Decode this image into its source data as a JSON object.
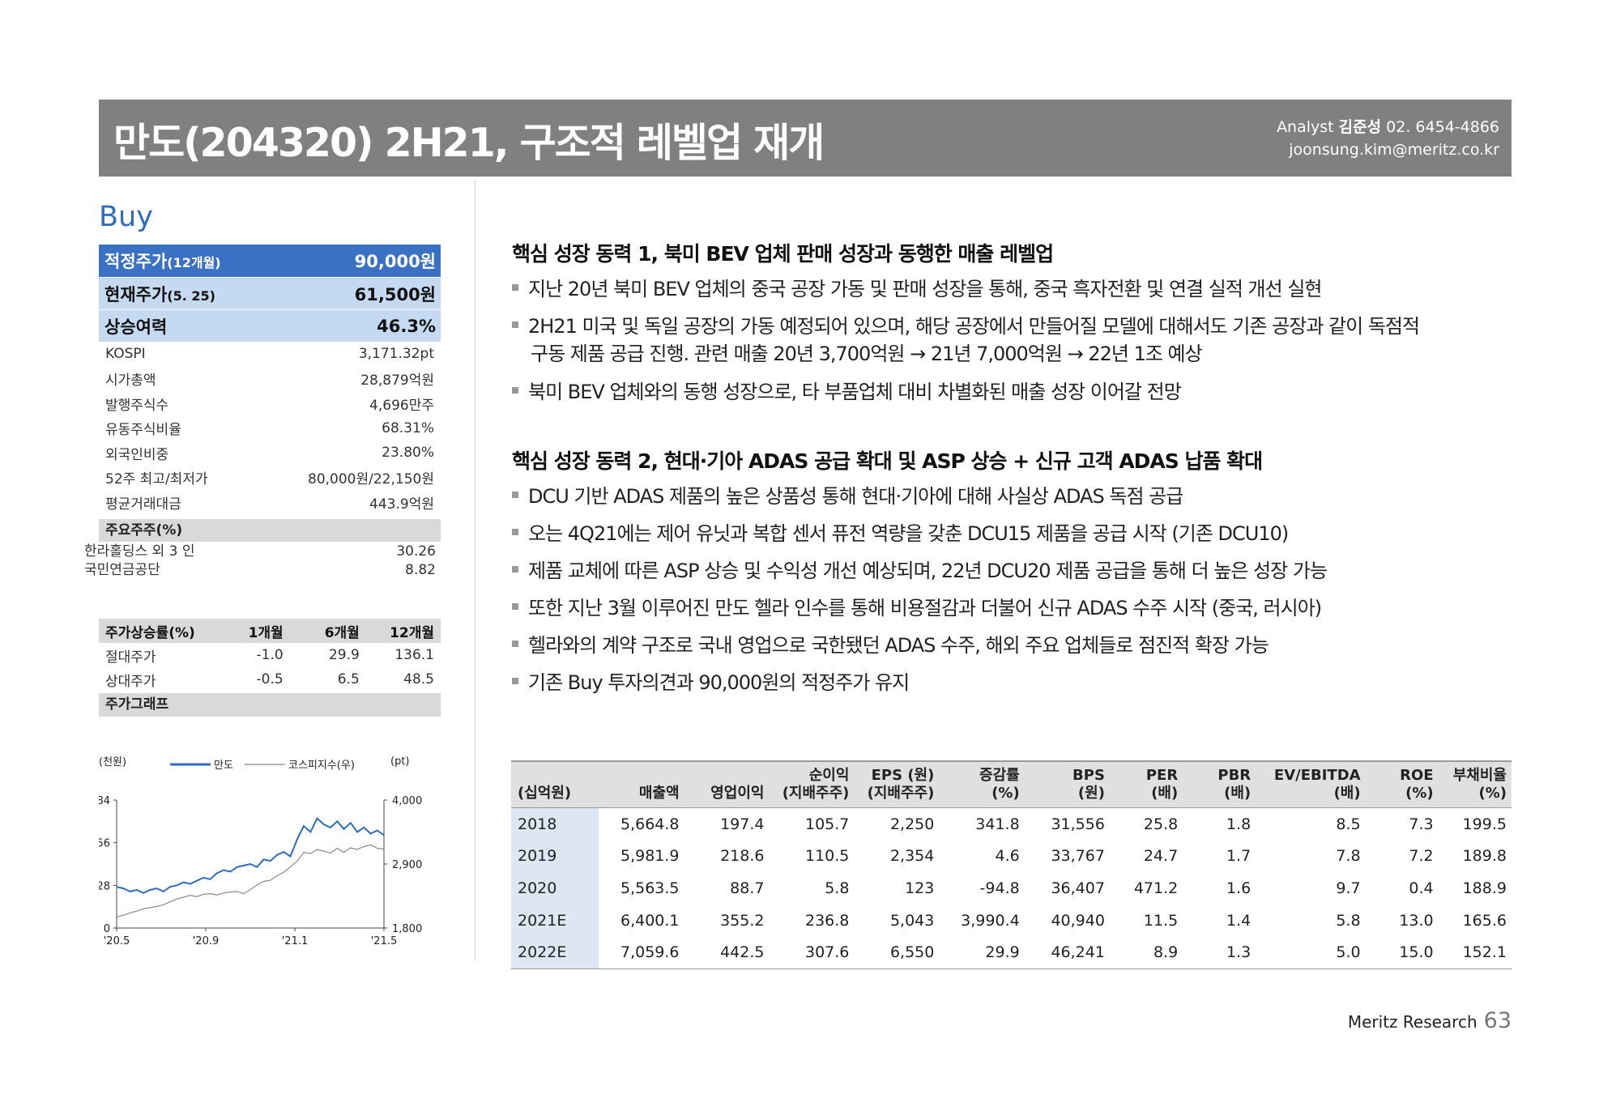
{
  "header": {
    "title": "만도(204320)  2H21, 구조적 레벨업 재개",
    "analyst_label": "Analyst",
    "analyst_name": "김준성",
    "phone": "02. 6454-4866",
    "email": "joonsung.kim@meritz.co.kr"
  },
  "rating": "Buy",
  "price_info": [
    {
      "label": "적정주가",
      "sub": "(12개월)",
      "value": "90,000원"
    },
    {
      "label": "현재주가",
      "sub": "(5. 25)",
      "value": "61,500원"
    },
    {
      "label": "상승여력",
      "sub": "",
      "value": "46.3%"
    }
  ],
  "stats": [
    {
      "label": "KOSPI",
      "value": "3,171.32pt"
    },
    {
      "label": "시가총액",
      "value": "28,879억원"
    },
    {
      "label": "발행주식수",
      "value": "4,696만주"
    },
    {
      "label": "유동주식비율",
      "value": "68.31%"
    },
    {
      "label": "외국인비중",
      "value": "23.80%"
    },
    {
      "label": "52주 최고/최저가",
      "value": "80,000원/22,150원"
    },
    {
      "label": "평균거래대금",
      "value": "443.9억원"
    }
  ],
  "shareholders": {
    "header": "주요주주(%)",
    "rows": [
      {
        "name": "한라홀딩스 외 3 인",
        "value": "30.26"
      },
      {
        "name": "국민연금공단",
        "value": "8.82"
      }
    ]
  },
  "performance": {
    "headers": [
      "주가상승률(%)",
      "1개월",
      "6개월",
      "12개월"
    ],
    "rows": [
      [
        "절대주가",
        "-1.0",
        "29.9",
        "136.1"
      ],
      [
        "상대주가",
        "-0.5",
        "6.5",
        "48.5"
      ]
    ]
  },
  "price_graph_label": "주가그래프",
  "chart_data": {
    "type": "line",
    "left_unit": "(천원)",
    "right_unit": "(pt)",
    "y_left_ticks": [
      "84",
      "56",
      "28",
      "0"
    ],
    "y_left_range": [
      0,
      84
    ],
    "y_right_ticks": [
      "4,000",
      "2,900",
      "1,800"
    ],
    "y_right_range": [
      1800,
      4000
    ],
    "x_ticks": [
      "'20.5",
      "'20.9",
      "'21.1",
      "'21.5"
    ],
    "x_range": [
      0,
      12
    ],
    "legend": [
      "만도",
      "코스피지수(우)"
    ],
    "legend_position": "top",
    "colors": {
      "mando": "#2f6cbf",
      "kospi": "#888888"
    },
    "series": [
      {
        "name": "만도",
        "axis": "left",
        "x": [
          0,
          0.3,
          0.6,
          0.9,
          1.2,
          1.5,
          1.8,
          2.1,
          2.4,
          2.7,
          3.0,
          3.3,
          3.6,
          3.9,
          4.2,
          4.5,
          4.8,
          5.1,
          5.4,
          5.7,
          6.0,
          6.3,
          6.6,
          6.9,
          7.2,
          7.5,
          7.8,
          8.1,
          8.4,
          8.7,
          9.0,
          9.3,
          9.6,
          9.9,
          10.2,
          10.5,
          10.8,
          11.1,
          11.4,
          11.7,
          12.0
        ],
        "values": [
          27,
          26,
          24,
          25,
          23,
          25,
          26,
          24,
          27,
          28,
          30,
          29,
          31,
          33,
          32,
          36,
          38,
          37,
          40,
          41,
          42,
          40,
          45,
          44,
          48,
          50,
          47,
          58,
          67,
          63,
          72,
          68,
          66,
          70,
          65,
          69,
          63,
          66,
          62,
          64,
          61
        ]
      },
      {
        "name": "코스피지수(우)",
        "axis": "right",
        "x": [
          0,
          0.3,
          0.6,
          0.9,
          1.2,
          1.5,
          1.8,
          2.1,
          2.4,
          2.7,
          3.0,
          3.3,
          3.6,
          3.9,
          4.2,
          4.5,
          4.8,
          5.1,
          5.4,
          5.7,
          6.0,
          6.3,
          6.6,
          6.9,
          7.2,
          7.5,
          7.8,
          8.1,
          8.4,
          8.7,
          9.0,
          9.3,
          9.6,
          9.9,
          10.2,
          10.5,
          10.8,
          11.1,
          11.4,
          11.7,
          12.0
        ],
        "values": [
          1990,
          2020,
          2060,
          2090,
          2130,
          2150,
          2170,
          2200,
          2250,
          2300,
          2330,
          2360,
          2340,
          2380,
          2390,
          2370,
          2400,
          2420,
          2430,
          2390,
          2460,
          2540,
          2600,
          2620,
          2700,
          2760,
          2850,
          2950,
          3100,
          3080,
          3150,
          3120,
          3090,
          3170,
          3100,
          3180,
          3150,
          3200,
          3230,
          3170,
          3160
        ]
      }
    ]
  },
  "section1": {
    "title": "핵심 성장 동력 1, 북미 BEV 업체 판매 성장과 동행한 매출 레벨업",
    "bullets": [
      "지난 20년 북미 BEV 업체의 중국 공장 가동 및 판매 성장을 통해, 중국 흑자전환 및 연결 실적 개선 실현",
      "2H21 미국 및 독일 공장의 가동 예정되어 있으며, 해당 공장에서 만들어질 모델에 대해서도 기존 공장과 같이 독점적",
      "북미 BEV 업체와의 동행 성장으로, 타 부품업체 대비 차별화된 매출 성장 이어갈 전망"
    ],
    "bullet2_cont": "구동 제품 공급 진행. 관련 매출 20년 3,700억원 → 21년 7,000억원 → 22년 1조 예상"
  },
  "section2": {
    "title": "핵심 성장 동력 2, 현대·기아 ADAS 공급 확대 및 ASP 상승 + 신규 고객 ADAS 납품 확대",
    "bullets": [
      "DCU 기반 ADAS 제품의 높은 상품성 통해 현대·기아에 대해 사실상 ADAS 독점 공급",
      "오는 4Q21에는 제어 유닛과 복합 센서 퓨전 역량을 갖춘 DCU15 제품을 공급 시작 (기존 DCU10)",
      "제품 교체에 따른 ASP 상승 및 수익성 개선 예상되며, 22년 DCU20 제품 공급을 통해 더 높은 성장 가능",
      "또한 지난 3월 이루어진 만도 헬라 인수를 통해 비용절감과 더불어 신규 ADAS 수주 시작 (중국, 러시아)",
      "헬라와의 계약 구조로 국내 영업으로 국한됐던 ADAS 수주, 해외 주요 업체들로 점진적 확장 가능",
      "기존 Buy 투자의견과 90,000원의 적정주가 유지"
    ]
  },
  "fin_table": {
    "unit": "(십억원)",
    "headers": [
      [
        "매출액",
        ""
      ],
      [
        "영업이익",
        ""
      ],
      [
        "순이익",
        "(지배주주)"
      ],
      [
        "EPS (원)",
        "(지배주주)"
      ],
      [
        "증감률",
        "(%)"
      ],
      [
        "BPS",
        "(원)"
      ],
      [
        "PER",
        "(배)"
      ],
      [
        "PBR",
        "(배)"
      ],
      [
        "EV/EBITDA",
        "(배)"
      ],
      [
        "ROE",
        "(%)"
      ],
      [
        "부채비율",
        "(%)"
      ]
    ],
    "rows": [
      [
        "2018",
        "5,664.8",
        "197.4",
        "105.7",
        "2,250",
        "341.8",
        "31,556",
        "25.8",
        "1.8",
        "8.5",
        "7.3",
        "199.5"
      ],
      [
        "2019",
        "5,981.9",
        "218.6",
        "110.5",
        "2,354",
        "4.6",
        "33,767",
        "24.7",
        "1.7",
        "7.8",
        "7.2",
        "189.8"
      ],
      [
        "2020",
        "5,563.5",
        "88.7",
        "5.8",
        "123",
        "-94.8",
        "36,407",
        "471.2",
        "1.6",
        "9.7",
        "0.4",
        "188.9"
      ],
      [
        "2021E",
        "6,400.1",
        "355.2",
        "236.8",
        "5,043",
        "3,990.4",
        "40,940",
        "11.5",
        "1.4",
        "5.8",
        "13.0",
        "165.6"
      ],
      [
        "2022E",
        "7,059.6",
        "442.5",
        "307.6",
        "6,550",
        "29.9",
        "46,241",
        "8.9",
        "1.3",
        "5.0",
        "15.0",
        "152.1"
      ]
    ]
  },
  "footer": {
    "brand": "Meritz Research",
    "page": "63"
  }
}
